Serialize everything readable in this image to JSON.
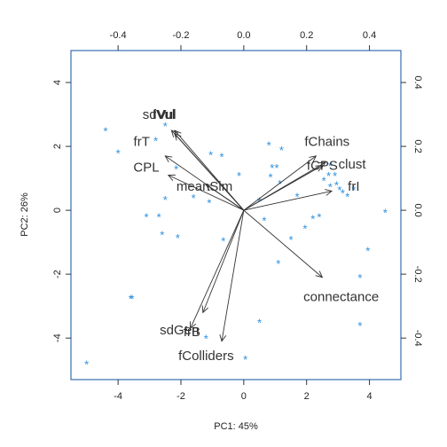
{
  "chart_data": {
    "type": "scatter",
    "subtype": "biplot",
    "xlabel": "PC1: 45%",
    "ylabel": "PC2: 26%",
    "xlim": [
      -5.5,
      5.0
    ],
    "ylim": [
      -5.3,
      5.0
    ],
    "x_ticks": [
      -4,
      -2,
      0,
      2,
      4
    ],
    "y_ticks": [
      -4,
      -2,
      0,
      2,
      4
    ],
    "loading_lim_x": [
      -0.55,
      0.5
    ],
    "loading_lim_y": [
      -0.53,
      0.5
    ],
    "top_ticks": [
      -0.4,
      -0.2,
      0.0,
      0.2,
      0.4
    ],
    "right_ticks": [
      -0.4,
      -0.2,
      0.0,
      0.2,
      0.4
    ],
    "point_marker": "*",
    "point_color": "#2a8fe0",
    "arrow_color": "#333333",
    "scores": [
      {
        "x": -5.0,
        "y": -4.7
      },
      {
        "x": -4.4,
        "y": 2.6
      },
      {
        "x": -4.0,
        "y": 1.9
      },
      {
        "x": -3.6,
        "y": -2.65
      },
      {
        "x": -3.55,
        "y": -2.65
      },
      {
        "x": -3.1,
        "y": -0.1
      },
      {
        "x": -2.8,
        "y": 2.3
      },
      {
        "x": -2.7,
        "y": -0.1
      },
      {
        "x": -2.6,
        "y": -0.65
      },
      {
        "x": -2.5,
        "y": 0.45
      },
      {
        "x": -2.5,
        "y": 2.75
      },
      {
        "x": -2.1,
        "y": -0.75
      },
      {
        "x": -2.15,
        "y": 1.4
      },
      {
        "x": -1.6,
        "y": 0.5
      },
      {
        "x": -1.2,
        "y": -3.9
      },
      {
        "x": -1.05,
        "y": 1.85
      },
      {
        "x": -1.1,
        "y": 0.35
      },
      {
        "x": -0.7,
        "y": 1.8
      },
      {
        "x": -0.65,
        "y": -0.85
      },
      {
        "x": -0.15,
        "y": 1.2
      },
      {
        "x": 0.05,
        "y": -4.55
      },
      {
        "x": 0.5,
        "y": -3.4
      },
      {
        "x": 0.5,
        "y": 0.4
      },
      {
        "x": 0.65,
        "y": -0.2
      },
      {
        "x": 0.8,
        "y": 2.15
      },
      {
        "x": 0.9,
        "y": 1.45
      },
      {
        "x": 0.85,
        "y": 1.15
      },
      {
        "x": 1.05,
        "y": 1.45
      },
      {
        "x": 1.1,
        "y": -1.55
      },
      {
        "x": 1.2,
        "y": 2.0
      },
      {
        "x": 1.15,
        "y": 0.95
      },
      {
        "x": 1.5,
        "y": -0.8
      },
      {
        "x": 1.7,
        "y": 0.55
      },
      {
        "x": 1.95,
        "y": -0.45
      },
      {
        "x": 2.2,
        "y": -0.15
      },
      {
        "x": 2.4,
        "y": -0.1
      },
      {
        "x": 2.55,
        "y": 1.05
      },
      {
        "x": 2.75,
        "y": 1.5
      },
      {
        "x": 2.75,
        "y": 0.85
      },
      {
        "x": 2.7,
        "y": 1.2
      },
      {
        "x": 2.9,
        "y": 1.2
      },
      {
        "x": 2.95,
        "y": 0.9
      },
      {
        "x": 3.05,
        "y": 0.75
      },
      {
        "x": 3.15,
        "y": 0.65
      },
      {
        "x": 3.3,
        "y": 0.55
      },
      {
        "x": 3.5,
        "y": 0.75
      },
      {
        "x": 3.7,
        "y": -2.0
      },
      {
        "x": 3.7,
        "y": -3.5
      },
      {
        "x": 3.95,
        "y": -1.15
      },
      {
        "x": 4.5,
        "y": 0.05
      }
    ],
    "loadings": [
      {
        "name": "sdVul",
        "x": -0.23,
        "y": 0.25,
        "label_x": -0.27,
        "label_y": 0.3
      },
      {
        "name": "fVul",
        "x": -0.22,
        "y": 0.24,
        "label_x": -0.255,
        "label_y": 0.3
      },
      {
        "name": "Vul",
        "x": -0.22,
        "y": 0.25,
        "label_x": -0.245,
        "label_y": 0.3
      },
      {
        "name": "frT",
        "x": -0.25,
        "y": 0.17,
        "label_x": -0.325,
        "label_y": 0.215
      },
      {
        "name": "CPL",
        "x": -0.24,
        "y": 0.11,
        "label_x": -0.31,
        "label_y": 0.135
      },
      {
        "name": "meanSim",
        "x": -0.12,
        "y": 0.08,
        "label_x": -0.125,
        "label_y": 0.075
      },
      {
        "name": "fChains",
        "x": 0.23,
        "y": 0.17,
        "label_x": 0.265,
        "label_y": 0.215
      },
      {
        "name": "fCPS",
        "x": 0.25,
        "y": 0.14,
        "label_x": 0.25,
        "label_y": 0.14
      },
      {
        "name": "clust",
        "x": 0.26,
        "y": 0.15,
        "label_x": 0.345,
        "label_y": 0.145
      },
      {
        "name": "frI",
        "x": 0.28,
        "y": 0.06,
        "label_x": 0.35,
        "label_y": 0.075
      },
      {
        "name": "connectance",
        "x": 0.25,
        "y": -0.21,
        "label_x": 0.31,
        "label_y": -0.27
      },
      {
        "name": "sdGen",
        "x": -0.17,
        "y": -0.37,
        "label_x": -0.205,
        "label_y": -0.375
      },
      {
        "name": "frB",
        "x": -0.13,
        "y": -0.32,
        "label_x": -0.165,
        "label_y": -0.38
      },
      {
        "name": "fColliders",
        "x": -0.07,
        "y": -0.41,
        "label_x": -0.12,
        "label_y": -0.455
      }
    ]
  }
}
